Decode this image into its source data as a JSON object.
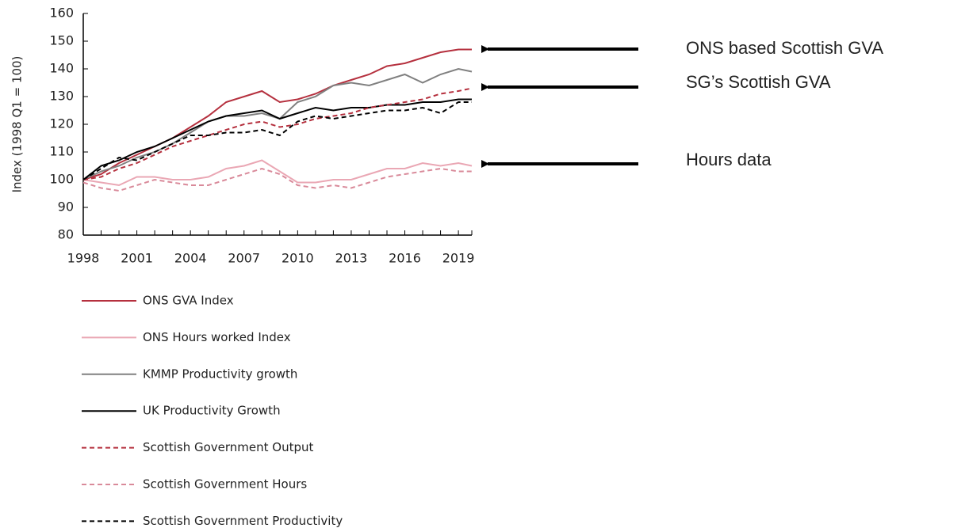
{
  "chart_data": {
    "type": "line",
    "y_label": "Index (1998 Q1 = 100)",
    "x": [
      1998,
      1999,
      2000,
      2001,
      2002,
      2003,
      2004,
      2005,
      2006,
      2007,
      2008,
      2009,
      2010,
      2011,
      2012,
      2013,
      2014,
      2015,
      2016,
      2017,
      2018,
      2019,
      2019.75
    ],
    "xlim": [
      1998,
      2019.75
    ],
    "xticks": [
      1998,
      2001,
      2004,
      2007,
      2010,
      2013,
      2016,
      2019
    ],
    "ylim": [
      80,
      160
    ],
    "yticks": [
      80,
      90,
      100,
      110,
      120,
      130,
      140,
      150,
      160
    ],
    "series": [
      {
        "name": "ONS GVA Index",
        "color": "#b5303e",
        "dash": "solid",
        "values": [
          100,
          102,
          106,
          109,
          112,
          115,
          119,
          123,
          128,
          130,
          132,
          128,
          129,
          131,
          134,
          136,
          138,
          141,
          142,
          144,
          146,
          147,
          147
        ]
      },
      {
        "name": "ONS Hours worked Index",
        "color": "#eaa7b4",
        "dash": "solid",
        "values": [
          100,
          99,
          98,
          101,
          101,
          100,
          100,
          101,
          104,
          105,
          107,
          103,
          99,
          99,
          100,
          100,
          102,
          104,
          104,
          106,
          105,
          106,
          105
        ]
      },
      {
        "name": "KMMP Productivity growth",
        "color": "#808080",
        "dash": "solid",
        "values": [
          100,
          103,
          105,
          108,
          110,
          113,
          117,
          121,
          123,
          123,
          124,
          122,
          128,
          130,
          134,
          135,
          134,
          136,
          138,
          135,
          138,
          140,
          139
        ]
      },
      {
        "name": "UK Productivity Growth",
        "color": "#000000",
        "dash": "solid",
        "values": [
          100,
          105,
          107,
          110,
          112,
          115,
          118,
          121,
          123,
          124,
          125,
          122,
          124,
          126,
          125,
          126,
          126,
          127,
          127,
          128,
          128,
          129,
          129
        ]
      },
      {
        "name": "Scottish Government Output",
        "color": "#b5303e",
        "dash": "dashed",
        "values": [
          100,
          101,
          104,
          106,
          109,
          112,
          114,
          116,
          118,
          120,
          121,
          119,
          120,
          122,
          123,
          124,
          126,
          127,
          128,
          129,
          131,
          132,
          133
        ]
      },
      {
        "name": "Scottish Government Hours",
        "color": "#d98a9a",
        "dash": "dashed",
        "values": [
          99,
          97,
          96,
          98,
          100,
          99,
          98,
          98,
          100,
          102,
          104,
          102,
          98,
          97,
          98,
          97,
          99,
          101,
          102,
          103,
          104,
          103,
          103
        ]
      },
      {
        "name": "Scottish Government Productivity",
        "color": "#000000",
        "dash": "dashed",
        "values": [
          100,
          104,
          108,
          107,
          110,
          113,
          116,
          116,
          117,
          117,
          118,
          116,
          121,
          123,
          122,
          123,
          124,
          125,
          125,
          126,
          124,
          128,
          128
        ]
      }
    ],
    "annotations": [
      "ONS based Scottish GVA",
      "SG’s Scottish GVA",
      "Hours data"
    ]
  }
}
